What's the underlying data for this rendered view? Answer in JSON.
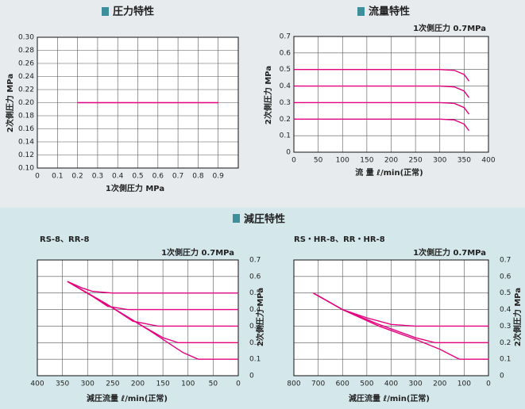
{
  "section_title": "減圧特性",
  "chart_data": [
    {
      "type": "line",
      "title": "圧力特性",
      "x_label": "1次側圧力 MPa",
      "y_label": "2次側圧力 MPa",
      "xlim": [
        0,
        1
      ],
      "xticks": [
        0,
        0.1,
        0.2,
        0.3,
        0.4,
        0.5,
        0.6,
        0.7,
        0.8,
        0.9
      ],
      "ylim": [
        0.1,
        0.3
      ],
      "yticks": [
        {
          "value": 0.1,
          "label": "0.10"
        },
        {
          "value": 0.12,
          "label": "0.12"
        },
        {
          "value": 0.14,
          "label": "0.14"
        },
        {
          "value": 0.16,
          "label": "0.16"
        },
        {
          "value": 0.18,
          "label": "0.18"
        },
        {
          "value": 0.2,
          "label": "0.20"
        },
        {
          "value": 0.22,
          "label": "0.22"
        },
        {
          "value": 0.24,
          "label": "0.24"
        },
        {
          "value": 0.26,
          "label": "0.26"
        },
        {
          "value": 0.28,
          "label": "0.28"
        },
        {
          "value": 0.3,
          "label": "0.30"
        }
      ],
      "grid": true,
      "y_axis_side": "left",
      "series": [
        {
          "color": "#e4007f",
          "x": [
            0.2,
            0.9
          ],
          "values": [
            0.2,
            0.2
          ]
        }
      ]
    },
    {
      "type": "line",
      "title": "流量特性",
      "annotation": "1次側圧力 0.7MPa",
      "x_label": "流 量 ℓ/min(正常)",
      "y_label": "2次側圧力 MPa",
      "xlim": [
        0,
        400
      ],
      "xticks": [
        0,
        50,
        100,
        150,
        200,
        250,
        300,
        350,
        400
      ],
      "ylim": [
        0,
        0.7
      ],
      "yticks": [
        0,
        0.1,
        0.2,
        0.3,
        0.4,
        0.5,
        0.6,
        0.7
      ],
      "grid": true,
      "y_axis_side": "left",
      "series": [
        {
          "color": "#e4007f",
          "x": [
            0,
            300,
            330,
            350,
            360
          ],
          "values": [
            0.5,
            0.5,
            0.495,
            0.47,
            0.43
          ]
        },
        {
          "color": "#e4007f",
          "x": [
            0,
            300,
            330,
            350,
            360
          ],
          "values": [
            0.4,
            0.4,
            0.395,
            0.37,
            0.33
          ]
        },
        {
          "color": "#e4007f",
          "x": [
            0,
            300,
            330,
            350,
            360
          ],
          "values": [
            0.3,
            0.3,
            0.295,
            0.27,
            0.23
          ]
        },
        {
          "color": "#e4007f",
          "x": [
            0,
            300,
            330,
            350,
            360
          ],
          "values": [
            0.2,
            0.2,
            0.195,
            0.17,
            0.13
          ]
        }
      ]
    },
    {
      "type": "line",
      "subtitle": "RS-8、RR-8",
      "annotation": "1次側圧力 0.7MPa",
      "x_label": "減圧流量 ℓ/min(正常)",
      "y_label": "2次側圧力 MPa",
      "xlim": [
        400,
        0
      ],
      "xticks": [
        400,
        350,
        300,
        250,
        200,
        150,
        100,
        50,
        0
      ],
      "ylim": [
        0,
        0.7
      ],
      "yticks": [
        0,
        0.1,
        0.2,
        0.3,
        0.4,
        0.5,
        0.6,
        0.7
      ],
      "grid": true,
      "y_axis_side": "right",
      "series": [
        {
          "color": "#e4007f",
          "x": [
            340,
            310,
            290,
            250,
            0
          ],
          "values": [
            0.57,
            0.53,
            0.51,
            0.5,
            0.5
          ]
        },
        {
          "color": "#e4007f",
          "x": [
            340,
            290,
            260,
            220,
            0
          ],
          "values": [
            0.57,
            0.48,
            0.42,
            0.4,
            0.4
          ]
        },
        {
          "color": "#e4007f",
          "x": [
            340,
            260,
            210,
            160,
            0
          ],
          "values": [
            0.57,
            0.43,
            0.33,
            0.3,
            0.3
          ]
        },
        {
          "color": "#e4007f",
          "x": [
            340,
            250,
            190,
            150,
            120,
            0
          ],
          "values": [
            0.57,
            0.41,
            0.3,
            0.23,
            0.2,
            0.2
          ]
        },
        {
          "color": "#e4007f",
          "x": [
            340,
            250,
            180,
            140,
            110,
            80,
            0
          ],
          "values": [
            0.57,
            0.41,
            0.28,
            0.2,
            0.14,
            0.1,
            0.1
          ]
        }
      ]
    },
    {
      "type": "line",
      "subtitle": "RS・HR-8、RR・HR-8",
      "annotation": "1次側圧力 0.7MPa",
      "x_label": "減圧流量 ℓ/min(正常)",
      "y_label": "2次側圧力 MPa",
      "xlim": [
        800,
        0
      ],
      "xticks": [
        800,
        700,
        600,
        500,
        400,
        300,
        200,
        100,
        0
      ],
      "ylim": [
        0,
        0.7
      ],
      "yticks": [
        0,
        0.1,
        0.2,
        0.3,
        0.4,
        0.5,
        0.6,
        0.7
      ],
      "grid": true,
      "y_axis_side": "right",
      "series": [
        {
          "color": "#e4007f",
          "x": [
            720,
            600,
            500,
            400,
            300,
            0
          ],
          "values": [
            0.5,
            0.4,
            0.35,
            0.31,
            0.3,
            0.3
          ]
        },
        {
          "color": "#e4007f",
          "x": [
            720,
            600,
            450,
            300,
            220,
            0
          ],
          "values": [
            0.5,
            0.4,
            0.31,
            0.23,
            0.2,
            0.2
          ]
        },
        {
          "color": "#e4007f",
          "x": [
            720,
            600,
            450,
            300,
            200,
            120,
            0
          ],
          "values": [
            0.5,
            0.4,
            0.3,
            0.22,
            0.16,
            0.1,
            0.1
          ]
        }
      ]
    }
  ]
}
